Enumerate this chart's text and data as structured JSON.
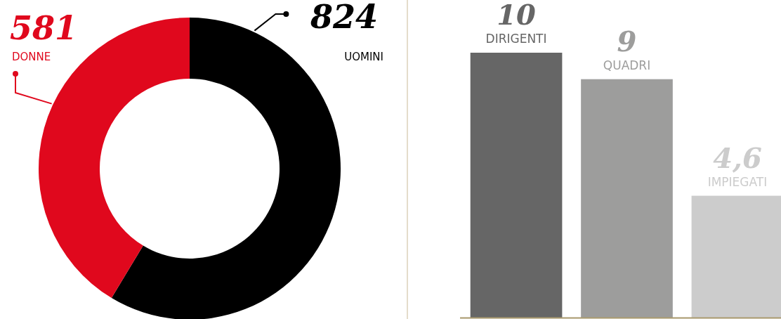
{
  "chart_data": [
    {
      "type": "donut",
      "categories": [
        "UOMINI",
        "DONNE"
      ],
      "values": [
        824,
        581
      ],
      "colors": [
        "#000000",
        "#e0081d"
      ],
      "data_labels": true
    },
    {
      "type": "bar",
      "categories": [
        "DIRIGENTI",
        "QUADRI",
        "IMPIEGATI"
      ],
      "values": [
        10,
        9,
        4.6
      ],
      "colors": [
        "#666666",
        "#9d9d9c",
        "#cccccc"
      ],
      "value_labels": [
        "10",
        "9",
        "4,6"
      ]
    }
  ]
}
